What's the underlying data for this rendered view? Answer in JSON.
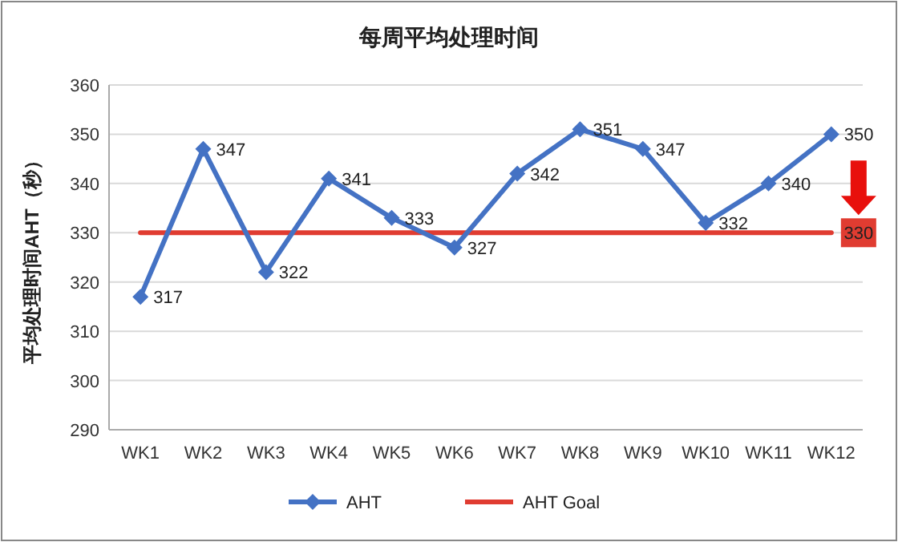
{
  "chart_data": {
    "type": "line",
    "title": "每周平均处理时间",
    "ylabel": "平均处理时间AHT（秒）",
    "categories": [
      "WK1",
      "WK2",
      "WK3",
      "WK4",
      "WK5",
      "WK6",
      "WK7",
      "WK8",
      "WK9",
      "WK10",
      "WK11",
      "WK12"
    ],
    "series": [
      {
        "name": "AHT",
        "color": "#4472c4",
        "marker": "diamond",
        "values": [
          317,
          347,
          322,
          341,
          333,
          327,
          342,
          351,
          347,
          332,
          340,
          350
        ],
        "data_labels": true
      },
      {
        "name": "AHT Goal",
        "color": "#e03c31",
        "marker": "none",
        "values": [
          330,
          330,
          330,
          330,
          330,
          330,
          330,
          330,
          330,
          330,
          330,
          330
        ],
        "value_labels": [
          null,
          null,
          null,
          null,
          null,
          null,
          null,
          null,
          null,
          null,
          null,
          "330"
        ]
      }
    ],
    "ylim": [
      290,
      360
    ],
    "yticks": [
      290,
      300,
      310,
      320,
      330,
      340,
      350,
      360
    ],
    "grid": "y",
    "legend": "bottom"
  }
}
